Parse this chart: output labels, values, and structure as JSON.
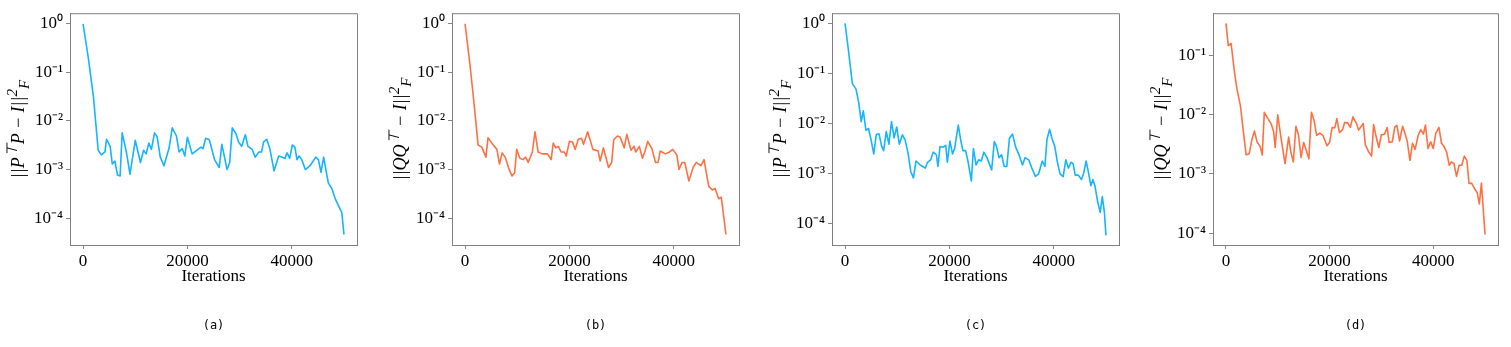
{
  "chart_data": [
    {
      "type": "line",
      "xlabel": "Iterations",
      "ylabel": "||P$^{⊤}$P − I||$^{2}$$_{F}$",
      "annotations": [
        "(a)"
      ],
      "log": true,
      "grid": false,
      "xlim": [
        -2500,
        52500
      ],
      "ylim": [
        2.8e-05,
        1.65
      ],
      "xticks": [
        0,
        20000,
        40000
      ],
      "yticks": [
        {
          "value": 1,
          "label": "10⁰"
        },
        {
          "value": 0.1,
          "label": "10⁻¹"
        },
        {
          "value": 0.01,
          "label": "10⁻²"
        },
        {
          "value": 0.001,
          "label": "10⁻³"
        },
        {
          "value": 0.0001,
          "label": "10⁻⁴"
        }
      ],
      "x": [
        0,
        1000,
        2000,
        2900,
        3500,
        4200,
        4500,
        5200,
        5600,
        6100,
        6600,
        7100,
        7500,
        8300,
        9000,
        10000,
        11000,
        11600,
        12100,
        12600,
        13100,
        13700,
        14200,
        14800,
        15500,
        16500,
        17100,
        17900,
        18400,
        19000,
        19500,
        20000,
        20900,
        22600,
        23000,
        23500,
        24200,
        25200,
        26100,
        26600,
        27600,
        28100,
        28600,
        29300,
        29800,
        30400,
        31100,
        31600,
        32400,
        33000,
        33700,
        34200,
        34600,
        35200,
        35800,
        36600,
        37500,
        38700,
        39100,
        39600,
        40100,
        40600,
        41000,
        41400,
        41900,
        42600,
        43500,
        44600,
        45100,
        45600,
        46100,
        47000,
        47700,
        48400,
        49600,
        50000
      ],
      "series": [
        {
          "color": "#14b4ff",
          "values": [
            1,
            0.2,
            0.031,
            0.0025,
            0.002,
            0.0023,
            0.0042,
            0.003,
            0.0013,
            0.0015,
            0.00077,
            0.00074,
            0.0057,
            0.0023,
            0.0008,
            0.004,
            0.0014,
            0.0025,
            0.0021,
            0.0035,
            0.0026,
            0.0057,
            0.0047,
            0.0018,
            0.0012,
            0.0028,
            0.0072,
            0.0049,
            0.0023,
            0.0027,
            0.0019,
            0.0046,
            0.0021,
            0.0029,
            0.0027,
            0.0044,
            0.0041,
            0.0016,
            0.0011,
            0.0033,
            0.001,
            0.0014,
            0.0072,
            0.0055,
            0.0037,
            0.003,
            0.0052,
            0.003,
            0.0026,
            0.0018,
            0.0023,
            0.0023,
            0.0037,
            0.0042,
            0.0027,
            0.00094,
            0.0019,
            0.0017,
            0.0022,
            0.0017,
            0.0032,
            0.0029,
            0.0016,
            0.0019,
            0.0016,
            0.001,
            0.0012,
            0.0018,
            0.0016,
            0.00088,
            0.0018,
            0.00053,
            0.0004,
            0.00024,
            0.00013,
            4.6e-05
          ]
        }
      ]
    },
    {
      "type": "line",
      "xlabel": "Iterations",
      "ylabel": "||QQ$^{⊤}$ − I||$^{2}$$_{F}$",
      "annotations": [
        "(b)"
      ],
      "log": true,
      "grid": false,
      "xlim": [
        -2500,
        52500
      ],
      "ylim": [
        2.8e-05,
        1.65
      ],
      "xticks": [
        0,
        20000,
        40000
      ],
      "yticks": [
        {
          "value": 1,
          "label": "10⁰"
        },
        {
          "value": 0.1,
          "label": "10⁻¹"
        },
        {
          "value": 0.01,
          "label": "10⁻²"
        },
        {
          "value": 0.001,
          "label": "10⁻³"
        },
        {
          "value": 0.0001,
          "label": "10⁻⁴"
        }
      ],
      "x": [
        0,
        1000,
        1800,
        2500,
        3200,
        4000,
        4400,
        5300,
        6100,
        6600,
        7100,
        7700,
        8500,
        9000,
        9500,
        9900,
        10500,
        11100,
        11600,
        12100,
        12900,
        13400,
        14000,
        14800,
        15800,
        16500,
        16900,
        17400,
        17900,
        18400,
        19000,
        19400,
        20000,
        20600,
        21100,
        21700,
        22300,
        22700,
        23500,
        24500,
        25500,
        25900,
        26500,
        27500,
        28100,
        28500,
        29200,
        29700,
        30500,
        31000,
        31800,
        32400,
        32700,
        33400,
        34000,
        34500,
        35000,
        35800,
        36500,
        37000,
        37400,
        38400,
        39200,
        39800,
        40600,
        41000,
        41600,
        42100,
        42900,
        43700,
        44300,
        45200,
        45800,
        46700,
        47400,
        47900,
        48600,
        49100,
        50000
      ],
      "series": [
        {
          "color": "#ff7043",
          "values": [
            1,
            0.127,
            0.019,
            0.0032,
            0.0029,
            0.0018,
            0.0045,
            0.0033,
            0.0026,
            0.0013,
            0.0022,
            0.0018,
            0.00097,
            0.00074,
            0.00086,
            0.0026,
            0.0017,
            0.0016,
            0.0018,
            0.0014,
            0.0023,
            0.006,
            0.0023,
            0.0021,
            0.0021,
            0.0016,
            0.0035,
            0.0028,
            0.003,
            0.0023,
            0.0023,
            0.0019,
            0.0038,
            0.0037,
            0.0026,
            0.0042,
            0.0044,
            0.0033,
            0.006,
            0.0026,
            0.0024,
            0.0015,
            0.0028,
            0.0011,
            0.0014,
            0.0041,
            0.0049,
            0.0047,
            0.0028,
            0.0053,
            0.0025,
            0.003,
            0.0023,
            0.003,
            0.0017,
            0.0024,
            0.0038,
            0.0027,
            0.0014,
            0.0014,
            0.0024,
            0.0021,
            0.0023,
            0.0026,
            0.002,
            0.001,
            0.0014,
            0.0014,
            0.00058,
            0.0011,
            0.0014,
            0.0012,
            0.0016,
            0.00045,
            0.00038,
            0.00041,
            0.00025,
            0.00027,
            4.6e-05
          ]
        }
      ]
    },
    {
      "type": "line",
      "xlabel": "Iterations",
      "ylabel": "||P$^{⊤}$P − I||$^{2}$$_{F}$",
      "annotations": [
        "(c)"
      ],
      "log": true,
      "grid": false,
      "xlim": [
        -2500,
        52500
      ],
      "ylim": [
        3.8e-05,
        1.6
      ],
      "xticks": [
        0,
        20000,
        40000
      ],
      "yticks": [
        {
          "value": 1,
          "label": "10⁰"
        },
        {
          "value": 0.1,
          "label": "10⁻¹"
        },
        {
          "value": 0.01,
          "label": "10⁻²"
        },
        {
          "value": 0.001,
          "label": "10⁻³"
        },
        {
          "value": 0.0001,
          "label": "10⁻⁴"
        }
      ],
      "x": [
        0,
        650,
        1400,
        2100,
        2600,
        3100,
        3500,
        4000,
        4500,
        5000,
        5500,
        6000,
        6500,
        7000,
        7400,
        7900,
        8400,
        8900,
        9400,
        9900,
        10400,
        11000,
        11500,
        12100,
        12600,
        13100,
        13600,
        14400,
        14900,
        15400,
        15800,
        16400,
        16900,
        17500,
        17800,
        18200,
        18800,
        19300,
        19600,
        20100,
        20600,
        21000,
        21700,
        22200,
        22600,
        23100,
        23600,
        24200,
        24600,
        25100,
        25600,
        26100,
        26600,
        27200,
        28100,
        28600,
        29000,
        29500,
        30000,
        30500,
        31000,
        31500,
        32100,
        32700,
        33400,
        34000,
        34500,
        35200,
        35800,
        36500,
        37100,
        37800,
        38300,
        38700,
        39200,
        39700,
        40200,
        40700,
        41200,
        41800,
        42300,
        42800,
        43300,
        43700,
        44100,
        44700,
        45300,
        45700,
        46200,
        46700,
        47100,
        47500,
        47900,
        48400,
        48900,
        49300,
        49700,
        50000
      ],
      "series": [
        {
          "color": "#14b4ff",
          "values": [
            1,
            0.29,
            0.063,
            0.049,
            0.027,
            0.011,
            0.018,
            0.0074,
            0.008,
            0.0047,
            0.0025,
            0.0061,
            0.0063,
            0.0036,
            0.0029,
            0.007,
            0.0039,
            0.011,
            0.0052,
            0.0086,
            0.0039,
            0.006,
            0.0048,
            0.0025,
            0.0011,
            0.00083,
            0.0018,
            0.0015,
            0.0014,
            0.0013,
            0.0017,
            0.0019,
            0.0027,
            0.0024,
            0.0014,
            0.0035,
            0.0034,
            0.0037,
            0.0017,
            0.0045,
            0.0025,
            0.0032,
            0.0094,
            0.0045,
            0.0029,
            0.0029,
            0.0017,
            0.00072,
            0.0032,
            0.0015,
            0.0019,
            0.0018,
            0.0027,
            0.0021,
            0.0012,
            0.0044,
            0.0036,
            0.0021,
            0.0024,
            0.0014,
            0.0014,
            0.0051,
            0.0062,
            0.0034,
            0.0023,
            0.0015,
            0.0021,
            0.0019,
            0.0013,
            0.00089,
            0.001,
            0.0018,
            0.0014,
            0.0049,
            0.0077,
            0.0049,
            0.0035,
            0.0017,
            0.001,
            0.00088,
            0.0019,
            0.0013,
            0.0017,
            0.0016,
            0.00094,
            0.00094,
            0.00077,
            0.001,
            0.0018,
            0.001,
            0.00058,
            0.00077,
            0.00057,
            0.00028,
            0.00017,
            0.00035,
            0.00017,
            5.9e-05
          ]
        }
      ]
    },
    {
      "type": "line",
      "xlabel": "Iterations",
      "ylabel": "||QQ$^{⊤}$ − I||$^{2}$$_{F}$",
      "annotations": [
        "(d)"
      ],
      "log": true,
      "grid": false,
      "xlim": [
        -2500,
        52500
      ],
      "ylim": [
        6.3e-05,
        0.52
      ],
      "xticks": [
        0,
        20000,
        40000
      ],
      "yticks": [
        {
          "value": 0.1,
          "label": "10⁻¹"
        },
        {
          "value": 0.01,
          "label": "10⁻²"
        },
        {
          "value": 0.001,
          "label": "10⁻³"
        },
        {
          "value": 0.0001,
          "label": "10⁻⁴"
        }
      ],
      "x": [
        0,
        450,
        1000,
        1600,
        2100,
        2800,
        3400,
        3900,
        4500,
        5000,
        5500,
        6000,
        6600,
        7000,
        7400,
        8100,
        8700,
        9200,
        9500,
        10000,
        10600,
        11400,
        12100,
        12500,
        13000,
        13500,
        14000,
        14500,
        15000,
        15500,
        16000,
        16500,
        17000,
        17500,
        18100,
        18700,
        19500,
        20000,
        20500,
        21000,
        21400,
        21900,
        22500,
        22900,
        23500,
        24000,
        24500,
        25200,
        25600,
        26500,
        26900,
        27500,
        28100,
        28500,
        29000,
        29500,
        30000,
        30600,
        31100,
        31500,
        32100,
        32600,
        33000,
        33500,
        34100,
        34600,
        35000,
        35500,
        36000,
        36500,
        37100,
        37600,
        38100,
        38500,
        39000,
        39500,
        40000,
        40500,
        41100,
        41600,
        42100,
        42600,
        43100,
        43500,
        44000,
        44500,
        45000,
        45500,
        46000,
        46500,
        46900,
        47400,
        48100,
        48500,
        48900,
        49300,
        50000
      ],
      "series": [
        {
          "color": "#ff7043",
          "values": [
            0.35,
            0.147,
            0.16,
            0.056,
            0.028,
            0.014,
            0.0048,
            0.0021,
            0.0022,
            0.0038,
            0.0053,
            0.0035,
            0.0029,
            0.0021,
            0.011,
            0.0086,
            0.0071,
            0.0052,
            0.0028,
            0.01,
            0.0042,
            0.0015,
            0.0042,
            0.0024,
            0.0016,
            0.0064,
            0.0045,
            0.0019,
            0.0034,
            0.0025,
            0.0018,
            0.011,
            0.0081,
            0.0045,
            0.0049,
            0.0045,
            0.003,
            0.0034,
            0.0061,
            0.006,
            0.0086,
            0.005,
            0.0056,
            0.0074,
            0.0073,
            0.0061,
            0.0092,
            0.0071,
            0.0055,
            0.0071,
            0.0031,
            0.0024,
            0.002,
            0.0068,
            0.0042,
            0.0028,
            0.0046,
            0.0047,
            0.0061,
            0.0034,
            0.0035,
            0.0063,
            0.0066,
            0.0036,
            0.0064,
            0.0047,
            0.0035,
            0.0017,
            0.0033,
            0.0026,
            0.0045,
            0.0056,
            0.0047,
            0.0067,
            0.0027,
            0.0035,
            0.0027,
            0.0049,
            0.0061,
            0.0033,
            0.0029,
            0.0023,
            0.0014,
            0.0016,
            0.0015,
            0.00091,
            0.0014,
            0.0014,
            0.002,
            0.0017,
            0.00069,
            0.0007,
            0.00054,
            0.00048,
            0.00031,
            0.0007,
            9.5e-05
          ]
        }
      ]
    }
  ]
}
